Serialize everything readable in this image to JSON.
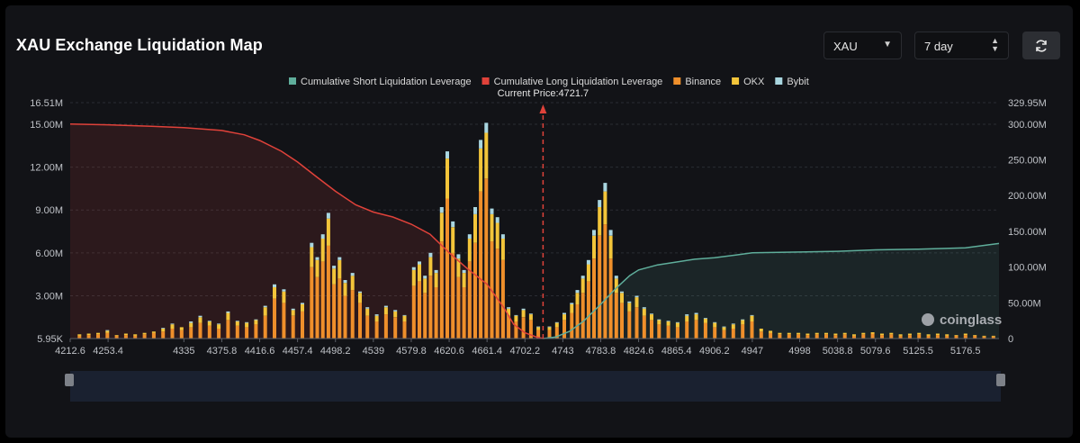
{
  "header": {
    "title": "XAU Exchange Liquidation Map",
    "symbol_select": "XAU",
    "period_select": "7 day"
  },
  "brand": "coinglass",
  "colors": {
    "short_line": "#5fae9b",
    "long_line": "#e0423a",
    "binance": "#ef8f2b",
    "okx": "#f3c53a",
    "bybit": "#a9d6e0",
    "price_marker": "#e0423a"
  },
  "chart_data": {
    "type": "bar",
    "current_price_label": "Current Price:4721.7",
    "current_price": 4721.7,
    "x_range": [
      4212.6,
      5212.6
    ],
    "x_tick_labels": [
      "4212.6",
      "4253.4",
      "4335",
      "4375.8",
      "4416.6",
      "4457.4",
      "4498.2",
      "4539",
      "4579.8",
      "4620.6",
      "4661.4",
      "4702.2",
      "4743",
      "4783.8",
      "4824.6",
      "4865.4",
      "4906.2",
      "4947",
      "4998",
      "5038.8",
      "5079.6",
      "5125.5",
      "5176.5"
    ],
    "x_tick_values": [
      4212.6,
      4253.4,
      4335,
      4375.8,
      4416.6,
      4457.4,
      4498.2,
      4539,
      4579.8,
      4620.6,
      4661.4,
      4702.2,
      4743,
      4783.8,
      4824.6,
      4865.4,
      4906.2,
      4947,
      4998,
      5038.8,
      5079.6,
      5125.5,
      5176.5
    ],
    "y_left_ticks": [
      "16.51M",
      "15.00M",
      "12.00M",
      "9.00M",
      "6.00M",
      "3.00M",
      "5.95K"
    ],
    "y_left_tick_values": [
      16510000,
      15000000,
      12000000,
      9000000,
      6000000,
      3000000,
      5950
    ],
    "y_left_range": [
      5950,
      16510000
    ],
    "y_right_ticks": [
      "329.95M",
      "300.00M",
      "250.00M",
      "200.00M",
      "150.00M",
      "100.00M",
      "50.00M",
      "0"
    ],
    "y_right_tick_values": [
      329950000,
      300000000,
      250000000,
      200000000,
      150000000,
      100000000,
      50000000,
      0
    ],
    "y_right_range": [
      0,
      329950000
    ],
    "legend": [
      {
        "name": "Cumulative Short Liquidation Leverage",
        "color": "#5fae9b"
      },
      {
        "name": "Cumulative Long Liquidation Leverage",
        "color": "#e0423a"
      },
      {
        "name": "Binance",
        "color": "#ef8f2b"
      },
      {
        "name": "OKX",
        "color": "#f3c53a"
      },
      {
        "name": "Bybit",
        "color": "#a9d6e0"
      }
    ],
    "bars": [
      {
        "x": 4222.6,
        "binance": 0.2,
        "okx": 0.1,
        "bybit": 0
      },
      {
        "x": 4232.6,
        "binance": 0.25,
        "okx": 0.1,
        "bybit": 0
      },
      {
        "x": 4242.6,
        "binance": 0.3,
        "okx": 0.1,
        "bybit": 0
      },
      {
        "x": 4252.6,
        "binance": 0.4,
        "okx": 0.15,
        "bybit": 0.05
      },
      {
        "x": 4262.6,
        "binance": 0.2,
        "okx": 0.05,
        "bybit": 0
      },
      {
        "x": 4272.6,
        "binance": 0.25,
        "okx": 0.1,
        "bybit": 0
      },
      {
        "x": 4282.6,
        "binance": 0.2,
        "okx": 0.1,
        "bybit": 0
      },
      {
        "x": 4292.6,
        "binance": 0.3,
        "okx": 0.1,
        "bybit": 0
      },
      {
        "x": 4302.6,
        "binance": 0.4,
        "okx": 0.1,
        "bybit": 0
      },
      {
        "x": 4312.6,
        "binance": 0.5,
        "okx": 0.2,
        "bybit": 0.05
      },
      {
        "x": 4322.6,
        "binance": 0.7,
        "okx": 0.3,
        "bybit": 0.05
      },
      {
        "x": 4332.6,
        "binance": 0.6,
        "okx": 0.2,
        "bybit": 0
      },
      {
        "x": 4342.6,
        "binance": 0.8,
        "okx": 0.3,
        "bybit": 0.1
      },
      {
        "x": 4352.6,
        "binance": 1.1,
        "okx": 0.4,
        "bybit": 0.1
      },
      {
        "x": 4362.6,
        "binance": 0.9,
        "okx": 0.3,
        "bybit": 0.05
      },
      {
        "x": 4372.6,
        "binance": 0.7,
        "okx": 0.3,
        "bybit": 0.05
      },
      {
        "x": 4382.6,
        "binance": 1.3,
        "okx": 0.5,
        "bybit": 0.1
      },
      {
        "x": 4392.6,
        "binance": 0.9,
        "okx": 0.3,
        "bybit": 0.05
      },
      {
        "x": 4402.6,
        "binance": 0.8,
        "okx": 0.3,
        "bybit": 0.05
      },
      {
        "x": 4412.6,
        "binance": 1.0,
        "okx": 0.3,
        "bybit": 0.05
      },
      {
        "x": 4422.6,
        "binance": 1.6,
        "okx": 0.6,
        "bybit": 0.1
      },
      {
        "x": 4432.6,
        "binance": 2.8,
        "okx": 0.8,
        "bybit": 0.2
      },
      {
        "x": 4442.6,
        "binance": 2.5,
        "okx": 0.8,
        "bybit": 0.15
      },
      {
        "x": 4452.6,
        "binance": 1.6,
        "okx": 0.4,
        "bybit": 0.1
      },
      {
        "x": 4462.6,
        "binance": 1.9,
        "okx": 0.5,
        "bybit": 0.1
      },
      {
        "x": 4472.6,
        "binance": 5.0,
        "okx": 1.4,
        "bybit": 0.3
      },
      {
        "x": 4478.6,
        "binance": 4.3,
        "okx": 1.2,
        "bybit": 0.2
      },
      {
        "x": 4484.6,
        "binance": 5.4,
        "okx": 1.6,
        "bybit": 0.3
      },
      {
        "x": 4490.6,
        "binance": 6.5,
        "okx": 1.9,
        "bybit": 0.4
      },
      {
        "x": 4496.6,
        "binance": 3.8,
        "okx": 1.1,
        "bybit": 0.2
      },
      {
        "x": 4502.6,
        "binance": 4.2,
        "okx": 1.3,
        "bybit": 0.2
      },
      {
        "x": 4508.6,
        "binance": 3.0,
        "okx": 0.9,
        "bybit": 0.2
      },
      {
        "x": 4516.6,
        "binance": 3.4,
        "okx": 1.0,
        "bybit": 0.2
      },
      {
        "x": 4524.6,
        "binance": 2.5,
        "okx": 0.7,
        "bybit": 0.1
      },
      {
        "x": 4532.6,
        "binance": 1.6,
        "okx": 0.5,
        "bybit": 0.1
      },
      {
        "x": 4542.6,
        "binance": 1.2,
        "okx": 0.4,
        "bybit": 0.1
      },
      {
        "x": 4552.6,
        "binance": 1.7,
        "okx": 0.5,
        "bybit": 0.1
      },
      {
        "x": 4562.6,
        "binance": 1.5,
        "okx": 0.4,
        "bybit": 0.1
      },
      {
        "x": 4572.6,
        "binance": 1.2,
        "okx": 0.4,
        "bybit": 0.05
      },
      {
        "x": 4582.6,
        "binance": 3.7,
        "okx": 1.1,
        "bybit": 0.2
      },
      {
        "x": 4588.6,
        "binance": 4.0,
        "okx": 1.2,
        "bybit": 0.2
      },
      {
        "x": 4594.6,
        "binance": 3.2,
        "okx": 1.0,
        "bybit": 0.2
      },
      {
        "x": 4600.6,
        "binance": 4.4,
        "okx": 1.3,
        "bybit": 0.3
      },
      {
        "x": 4606.6,
        "binance": 3.6,
        "okx": 1.0,
        "bybit": 0.2
      },
      {
        "x": 4612.6,
        "binance": 6.8,
        "okx": 2.0,
        "bybit": 0.4
      },
      {
        "x": 4618.6,
        "binance": 9.8,
        "okx": 2.8,
        "bybit": 0.5
      },
      {
        "x": 4624.6,
        "binance": 6.0,
        "okx": 1.8,
        "bybit": 0.4
      },
      {
        "x": 4630.6,
        "binance": 4.3,
        "okx": 1.3,
        "bybit": 0.3
      },
      {
        "x": 4636.6,
        "binance": 3.6,
        "okx": 1.0,
        "bybit": 0.2
      },
      {
        "x": 4642.6,
        "binance": 5.4,
        "okx": 1.6,
        "bybit": 0.3
      },
      {
        "x": 4648.6,
        "binance": 6.7,
        "okx": 2.0,
        "bybit": 0.5
      },
      {
        "x": 4654.6,
        "binance": 10.3,
        "okx": 3.0,
        "bybit": 0.6
      },
      {
        "x": 4660.6,
        "binance": 11.2,
        "okx": 3.2,
        "bybit": 0.7
      },
      {
        "x": 4666.6,
        "binance": 6.8,
        "okx": 1.9,
        "bybit": 0.4
      },
      {
        "x": 4672.6,
        "binance": 6.3,
        "okx": 1.8,
        "bybit": 0.4
      },
      {
        "x": 4678.6,
        "binance": 5.5,
        "okx": 1.5,
        "bybit": 0.3
      },
      {
        "x": 4684.6,
        "binance": 1.6,
        "okx": 0.5,
        "bybit": 0.1
      },
      {
        "x": 4692.6,
        "binance": 1.2,
        "okx": 0.4,
        "bybit": 0.05
      },
      {
        "x": 4700.6,
        "binance": 1.5,
        "okx": 0.5,
        "bybit": 0.1
      },
      {
        "x": 4708.6,
        "binance": 1.3,
        "okx": 0.4,
        "bybit": 0.05
      },
      {
        "x": 4716.6,
        "binance": 0.6,
        "okx": 0.2,
        "bybit": 0.05
      },
      {
        "x": 4728.6,
        "binance": 0.6,
        "okx": 0.2,
        "bybit": 0.05
      },
      {
        "x": 4736.6,
        "binance": 0.8,
        "okx": 0.3,
        "bybit": 0.05
      },
      {
        "x": 4744.6,
        "binance": 1.3,
        "okx": 0.4,
        "bybit": 0.1
      },
      {
        "x": 4752.6,
        "binance": 1.8,
        "okx": 0.6,
        "bybit": 0.1
      },
      {
        "x": 4758.6,
        "binance": 2.4,
        "okx": 0.8,
        "bybit": 0.2
      },
      {
        "x": 4764.6,
        "binance": 3.2,
        "okx": 1.0,
        "bybit": 0.2
      },
      {
        "x": 4770.6,
        "binance": 4.0,
        "okx": 1.2,
        "bybit": 0.3
      },
      {
        "x": 4776.6,
        "binance": 5.6,
        "okx": 1.6,
        "bybit": 0.4
      },
      {
        "x": 4782.6,
        "binance": 7.2,
        "okx": 2.0,
        "bybit": 0.5
      },
      {
        "x": 4788.6,
        "binance": 8.0,
        "okx": 2.3,
        "bybit": 0.6
      },
      {
        "x": 4794.6,
        "binance": 5.6,
        "okx": 1.6,
        "bybit": 0.4
      },
      {
        "x": 4800.6,
        "binance": 3.2,
        "okx": 1.0,
        "bybit": 0.2
      },
      {
        "x": 4806.6,
        "binance": 2.5,
        "okx": 0.7,
        "bybit": 0.1
      },
      {
        "x": 4814.6,
        "binance": 1.9,
        "okx": 0.6,
        "bybit": 0.1
      },
      {
        "x": 4822.6,
        "binance": 2.2,
        "okx": 0.7,
        "bybit": 0.1
      },
      {
        "x": 4830.6,
        "binance": 1.6,
        "okx": 0.5,
        "bybit": 0.1
      },
      {
        "x": 4838.6,
        "binance": 1.3,
        "okx": 0.4,
        "bybit": 0.05
      },
      {
        "x": 4846.6,
        "binance": 1.0,
        "okx": 0.3,
        "bybit": 0.05
      },
      {
        "x": 4856.6,
        "binance": 0.9,
        "okx": 0.3,
        "bybit": 0.05
      },
      {
        "x": 4866.6,
        "binance": 0.8,
        "okx": 0.3,
        "bybit": 0.05
      },
      {
        "x": 4876.6,
        "binance": 1.2,
        "okx": 0.4,
        "bybit": 0.1
      },
      {
        "x": 4886.6,
        "binance": 1.3,
        "okx": 0.4,
        "bybit": 0.1
      },
      {
        "x": 4896.6,
        "binance": 1.1,
        "okx": 0.3,
        "bybit": 0.05
      },
      {
        "x": 4906.6,
        "binance": 0.8,
        "okx": 0.3,
        "bybit": 0.05
      },
      {
        "x": 4916.6,
        "binance": 0.6,
        "okx": 0.2,
        "bybit": 0.05
      },
      {
        "x": 4926.6,
        "binance": 0.7,
        "okx": 0.3,
        "bybit": 0.05
      },
      {
        "x": 4936.6,
        "binance": 1.0,
        "okx": 0.3,
        "bybit": 0.05
      },
      {
        "x": 4946.6,
        "binance": 1.2,
        "okx": 0.4,
        "bybit": 0.05
      },
      {
        "x": 4956.6,
        "binance": 0.5,
        "okx": 0.2,
        "bybit": 0
      },
      {
        "x": 4966.6,
        "binance": 0.4,
        "okx": 0.15,
        "bybit": 0
      },
      {
        "x": 4976.6,
        "binance": 0.3,
        "okx": 0.1,
        "bybit": 0
      },
      {
        "x": 4986.6,
        "binance": 0.3,
        "okx": 0.1,
        "bybit": 0
      },
      {
        "x": 4996.6,
        "binance": 0.3,
        "okx": 0.1,
        "bybit": 0
      },
      {
        "x": 5006.6,
        "binance": 0.25,
        "okx": 0.1,
        "bybit": 0
      },
      {
        "x": 5016.6,
        "binance": 0.3,
        "okx": 0.1,
        "bybit": 0
      },
      {
        "x": 5026.6,
        "binance": 0.3,
        "okx": 0.1,
        "bybit": 0
      },
      {
        "x": 5036.6,
        "binance": 0.25,
        "okx": 0.1,
        "bybit": 0
      },
      {
        "x": 5046.6,
        "binance": 0.3,
        "okx": 0.1,
        "bybit": 0
      },
      {
        "x": 5056.6,
        "binance": 0.2,
        "okx": 0.1,
        "bybit": 0
      },
      {
        "x": 5066.6,
        "binance": 0.3,
        "okx": 0.1,
        "bybit": 0
      },
      {
        "x": 5076.6,
        "binance": 0.35,
        "okx": 0.1,
        "bybit": 0
      },
      {
        "x": 5086.6,
        "binance": 0.25,
        "okx": 0.1,
        "bybit": 0
      },
      {
        "x": 5096.6,
        "binance": 0.3,
        "okx": 0.1,
        "bybit": 0
      },
      {
        "x": 5106.6,
        "binance": 0.2,
        "okx": 0.1,
        "bybit": 0
      },
      {
        "x": 5116.6,
        "binance": 0.25,
        "okx": 0.1,
        "bybit": 0
      },
      {
        "x": 5126.6,
        "binance": 0.3,
        "okx": 0.1,
        "bybit": 0
      },
      {
        "x": 5136.6,
        "binance": 0.2,
        "okx": 0.1,
        "bybit": 0
      },
      {
        "x": 5146.6,
        "binance": 0.25,
        "okx": 0.1,
        "bybit": 0
      },
      {
        "x": 5156.6,
        "binance": 0.2,
        "okx": 0.1,
        "bybit": 0
      },
      {
        "x": 5166.6,
        "binance": 0.2,
        "okx": 0.05,
        "bybit": 0
      },
      {
        "x": 5176.6,
        "binance": 0.25,
        "okx": 0.1,
        "bybit": 0
      },
      {
        "x": 5186.6,
        "binance": 0.2,
        "okx": 0.05,
        "bybit": 0
      },
      {
        "x": 5196.6,
        "binance": 0.15,
        "okx": 0.05,
        "bybit": 0
      },
      {
        "x": 5206.6,
        "binance": 0.15,
        "okx": 0.05,
        "bybit": 0
      }
    ],
    "bar_value_unit": "M",
    "long_cumulative": [
      {
        "x": 4212.6,
        "y": 300
      },
      {
        "x": 4253.4,
        "y": 299
      },
      {
        "x": 4300,
        "y": 297
      },
      {
        "x": 4335,
        "y": 295
      },
      {
        "x": 4375.8,
        "y": 291
      },
      {
        "x": 4400,
        "y": 285
      },
      {
        "x": 4416.6,
        "y": 277
      },
      {
        "x": 4440,
        "y": 262
      },
      {
        "x": 4457.4,
        "y": 247
      },
      {
        "x": 4478,
        "y": 226
      },
      {
        "x": 4498.2,
        "y": 206
      },
      {
        "x": 4520,
        "y": 187
      },
      {
        "x": 4539,
        "y": 177
      },
      {
        "x": 4560,
        "y": 170
      },
      {
        "x": 4579.8,
        "y": 160
      },
      {
        "x": 4600,
        "y": 146
      },
      {
        "x": 4620.6,
        "y": 120
      },
      {
        "x": 4640,
        "y": 98
      },
      {
        "x": 4661.4,
        "y": 76
      },
      {
        "x": 4680,
        "y": 42
      },
      {
        "x": 4690,
        "y": 20
      },
      {
        "x": 4702.2,
        "y": 8
      },
      {
        "x": 4715,
        "y": 2
      },
      {
        "x": 4721.7,
        "y": 0
      }
    ],
    "short_cumulative": [
      {
        "x": 4721.7,
        "y": 0
      },
      {
        "x": 4735,
        "y": 2
      },
      {
        "x": 4750,
        "y": 10
      },
      {
        "x": 4765,
        "y": 24
      },
      {
        "x": 4783.8,
        "y": 48
      },
      {
        "x": 4800,
        "y": 70
      },
      {
        "x": 4815,
        "y": 88
      },
      {
        "x": 4824.6,
        "y": 96
      },
      {
        "x": 4845,
        "y": 103
      },
      {
        "x": 4865.4,
        "y": 107
      },
      {
        "x": 4885,
        "y": 111
      },
      {
        "x": 4906.2,
        "y": 113
      },
      {
        "x": 4930,
        "y": 117
      },
      {
        "x": 4947,
        "y": 120
      },
      {
        "x": 4998,
        "y": 121
      },
      {
        "x": 5038.8,
        "y": 122
      },
      {
        "x": 5079.6,
        "y": 124
      },
      {
        "x": 5125.5,
        "y": 125
      },
      {
        "x": 5176.5,
        "y": 127
      },
      {
        "x": 5212.6,
        "y": 133
      }
    ],
    "cumulative_unit": "M"
  }
}
